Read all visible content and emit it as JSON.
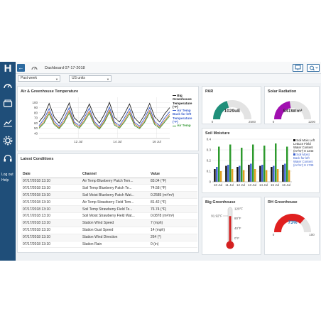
{
  "app": {
    "logo": "H",
    "sidebar": {
      "logout": "Log out",
      "help": "Help",
      "icons": [
        "gauge-icon",
        "devices-icon",
        "charts-icon",
        "gear-icon",
        "headset-icon"
      ]
    },
    "topbar": {
      "dashboard_title": "Dashboard 07-17-2018"
    }
  },
  "filters": {
    "period": "Past week",
    "units": "US units"
  },
  "air_panel": {
    "title": "Air & Greenhouse Temperature",
    "legend": [
      {
        "name": "Big Greenhouse Temperature (°F)",
        "color": "#222222"
      },
      {
        "name": "Air Temp Back far left Temperature (°F)",
        "color": "#3a5fcd"
      },
      {
        "name": "Air Temp",
        "color": "#3a9a3a"
      }
    ]
  },
  "latest": {
    "title": "Latest Conditions",
    "headers": [
      "Date",
      "Channel",
      "Value"
    ],
    "rows": [
      [
        "07/17/2018 13:10",
        "Air Temp Blueberry Patch Tem...",
        "83.04 (°F)"
      ],
      [
        "07/17/2018 13:10",
        "Soil Temp Blueberry Patch Te...",
        "74.58 (°F)"
      ],
      [
        "07/17/2018 13:10",
        "Soil Moist Blueberry Patch Wat...",
        "0.2585 (m³/m³)"
      ],
      [
        "07/17/2018 13:10",
        "Air Temp Strawberry Field Tem...",
        "81.42 (°F)"
      ],
      [
        "07/17/2018 13:10",
        "Soil Temp Strawberry Field Te...",
        "76.74 (°F)"
      ],
      [
        "07/17/2018 13:10",
        "Soil Moist Strawberry Field Wat...",
        "0.0878 (m³/m³)"
      ],
      [
        "07/17/2018 13:10",
        "Station Wind Speed",
        "7 (mph)"
      ],
      [
        "07/17/2018 13:10",
        "Station Gust Speed",
        "14 (mph)"
      ],
      [
        "07/17/2018 13:10",
        "Station Wind Direction",
        "264 (°)"
      ],
      [
        "07/17/2018 13:10",
        "Station Rain",
        "0 (in)"
      ]
    ]
  },
  "par": {
    "title": "PAR",
    "value": "1029uE",
    "min": "0",
    "max": "2500",
    "fraction": 0.41,
    "color": "#1f8f7a"
  },
  "solar": {
    "title": "Solar Radiation",
    "value": "541W/m²",
    "min": "0",
    "max": "1200",
    "fraction": 0.45,
    "color": "#a10fb0"
  },
  "soil_panel": {
    "title": "Soil Moisture",
    "legend": [
      {
        "name": "Soil Mois Left Lettuce Field Water Content (m³/m³) 8 1243",
        "color": "#111111"
      },
      {
        "name": "Soil Moist Back far left Water Content (m³/m³) 8 1739",
        "color": "#3a5fcd"
      }
    ]
  },
  "big_greenhouse": {
    "title": "Big Greenhouse",
    "reading": "91.92°F",
    "scale": [
      "120°F",
      "80°F",
      "40°F",
      "0°F"
    ],
    "fraction": 0.77,
    "color": "#d42020"
  },
  "rh": {
    "title": "RH Greenhouse",
    "value": "73%",
    "min": "0",
    "max": "100",
    "fraction": 0.73,
    "color": "#e02020"
  },
  "chart_data": [
    {
      "type": "line",
      "title": "Air & Greenhouse Temperature",
      "x_ticks": [
        "12 Jul",
        "14 Jul",
        "16 Jul"
      ],
      "ylim": [
        30,
        110
      ],
      "y_ticks": [
        40,
        50,
        60,
        70,
        80,
        90,
        100
      ],
      "grid": true,
      "legend_position": "right",
      "series": [
        {
          "name": "Big Greenhouse Temperature (°F)",
          "color": "#222222",
          "values": [
            62,
            75,
            98,
            72,
            60,
            78,
            99,
            70,
            61,
            76,
            97,
            73,
            60,
            77,
            100,
            71,
            62,
            78,
            97,
            70,
            60,
            76,
            98,
            72,
            62,
            78,
            90
          ]
        },
        {
          "name": "Air Temp Back far left Temperature (°F)",
          "color": "#3a5fcd",
          "values": [
            55,
            68,
            88,
            64,
            54,
            69,
            90,
            62,
            55,
            70,
            89,
            63,
            53,
            68,
            91,
            62,
            55,
            70,
            88,
            61,
            54,
            69,
            90,
            63,
            55,
            70,
            82
          ]
        },
        {
          "name": "Air Temp",
          "color": "#3a9a3a",
          "values": [
            50,
            60,
            78,
            57,
            49,
            61,
            80,
            56,
            50,
            62,
            79,
            57,
            48,
            61,
            81,
            56,
            50,
            62,
            78,
            55,
            49,
            61,
            80,
            57,
            50,
            62,
            74
          ]
        },
        {
          "name": "",
          "color": "#d07030",
          "values": [
            52,
            63,
            82,
            60,
            51,
            64,
            84,
            59,
            52,
            65,
            83,
            60,
            50,
            64,
            85,
            59,
            52,
            65,
            82,
            58,
            51,
            64,
            84,
            60,
            52,
            65,
            77
          ]
        }
      ]
    },
    {
      "type": "bar",
      "title": "Soil Moisture",
      "categories": [
        "10 Jul",
        "11 Jul",
        "12 Jul",
        "13 Jul",
        "14 Jul",
        "15 Jul",
        "16 Jul"
      ],
      "ylim": [
        0,
        0.4
      ],
      "y_ticks": [
        0,
        0.1,
        0.2,
        0.3,
        0.4
      ],
      "series": [
        {
          "name": "Soil Mois Left Lettuce Field",
          "color": "#111111",
          "values": [
            0.12,
            0.15,
            0.14,
            0.16,
            0.15,
            0.14,
            0.16
          ]
        },
        {
          "name": "Soil Moist Back far left",
          "color": "#3a5fcd",
          "values": [
            0.14,
            0.16,
            0.15,
            0.17,
            0.16,
            0.15,
            0.17
          ]
        },
        {
          "name": "",
          "color": "#2d9a2d",
          "values": [
            0.33,
            0.35,
            0.32,
            0.35,
            0.34,
            0.36,
            0.33
          ]
        },
        {
          "name": "",
          "color": "#e0a020",
          "values": [
            0.1,
            0.12,
            0.11,
            0.12,
            0.11,
            0.12,
            0.11
          ]
        }
      ]
    }
  ]
}
